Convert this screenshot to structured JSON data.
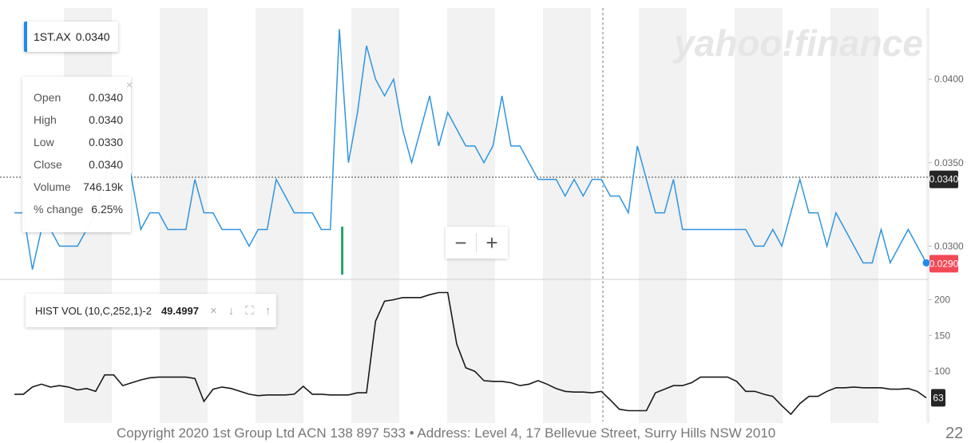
{
  "chart_data": {
    "type": "line",
    "watermark": "yahoo!finance",
    "price_panel": {
      "symbol": "1ST.AX",
      "last": "0.0340",
      "ylim": [
        0.0283,
        0.0434
      ],
      "ticks": [
        "0.0400",
        "0.0350",
        "0.0300"
      ],
      "tick_values": [
        0.04,
        0.035,
        0.03
      ],
      "current_label": "0.0340",
      "current_value": 0.034,
      "end_label": "0.0290",
      "end_value": 0.029,
      "values": [
        0.032,
        0.032,
        0.0286,
        0.031,
        0.031,
        0.03,
        0.03,
        0.03,
        0.031,
        0.032,
        0.034,
        0.036,
        0.0368,
        0.034,
        0.031,
        0.032,
        0.032,
        0.031,
        0.031,
        0.031,
        0.034,
        0.032,
        0.032,
        0.031,
        0.031,
        0.031,
        0.03,
        0.031,
        0.031,
        0.034,
        0.033,
        0.032,
        0.032,
        0.032,
        0.031,
        0.031,
        0.043,
        0.035,
        0.038,
        0.042,
        0.04,
        0.039,
        0.04,
        0.037,
        0.035,
        0.037,
        0.039,
        0.036,
        0.038,
        0.037,
        0.036,
        0.036,
        0.035,
        0.036,
        0.039,
        0.036,
        0.036,
        0.035,
        0.034,
        0.034,
        0.034,
        0.033,
        0.034,
        0.033,
        0.034,
        0.034,
        0.033,
        0.033,
        0.032,
        0.036,
        0.034,
        0.032,
        0.032,
        0.034,
        0.031,
        0.031,
        0.031,
        0.031,
        0.031,
        0.031,
        0.031,
        0.031,
        0.03,
        0.03,
        0.031,
        0.03,
        0.032,
        0.034,
        0.032,
        0.032,
        0.03,
        0.032,
        0.031,
        0.03,
        0.029,
        0.029,
        0.031,
        0.029,
        0.03,
        0.031,
        0.03,
        0.029
      ]
    },
    "tooltip": {
      "close_glyph": "×",
      "rows": [
        {
          "label": "Open",
          "value": "0.0340"
        },
        {
          "label": "High",
          "value": "0.0340"
        },
        {
          "label": "Low",
          "value": "0.0330"
        },
        {
          "label": "Close",
          "value": "0.0340"
        },
        {
          "label": "Volume",
          "value": "746.19k"
        },
        {
          "label": "% change",
          "value": "6.25%"
        }
      ]
    },
    "volume_marker_index": 36,
    "zoom": {
      "minus": "−",
      "plus": "+"
    },
    "indicator_panel": {
      "name": "HIST VOL (10,C,252,1)-2",
      "value": "49.4997",
      "icons": [
        "×",
        "↓",
        "⛶",
        "↑"
      ],
      "ylim": [
        30,
        215
      ],
      "ticks": [
        "200",
        "150",
        "100"
      ],
      "tick_values": [
        200,
        150,
        100
      ],
      "current_label": "63",
      "current_value": 63,
      "values": [
        68,
        68,
        78,
        82,
        78,
        80,
        78,
        74,
        76,
        72,
        95,
        95,
        80,
        84,
        88,
        91,
        92,
        92,
        92,
        92,
        90,
        58,
        75,
        78,
        76,
        72,
        68,
        66,
        67,
        67,
        67,
        68,
        79,
        68,
        68,
        67,
        67,
        67,
        70,
        70,
        170,
        198,
        200,
        203,
        203,
        203,
        207,
        210,
        210,
        138,
        105,
        100,
        87,
        86,
        86,
        84,
        80,
        82,
        87,
        82,
        76,
        72,
        71,
        71,
        70,
        72,
        60,
        47,
        45,
        45,
        45,
        70,
        75,
        80,
        80,
        84,
        92,
        92,
        92,
        92,
        86,
        72,
        72,
        68,
        65,
        52,
        40,
        55,
        65,
        65,
        72,
        77,
        77,
        78,
        77,
        77,
        77,
        75,
        75,
        76,
        72,
        63
      ]
    },
    "footer": "Copyright 2020 1st Group Ltd ACN 138 897 533  •  Address: Level 4, 17 Bellevue Street, Surry Hills NSW 2010",
    "page_number": "22",
    "colors": {
      "price_line": "#2f95df",
      "indicator_line": "#1a1a1a",
      "volume_bar": "#21a86a",
      "end_badge": "#f24957",
      "current_badge": "#262626",
      "band": "#f2f2f2"
    }
  }
}
